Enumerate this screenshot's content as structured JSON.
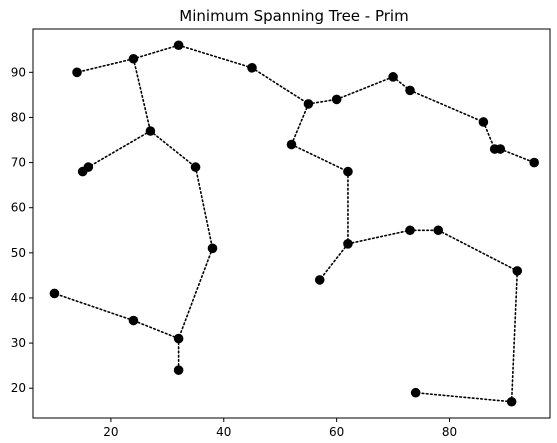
{
  "chart_data": {
    "type": "scatter",
    "title": "Minimum Spanning Tree - Prim",
    "xlabel": "",
    "ylabel": "",
    "xlim": [
      6.2,
      97.8
    ],
    "ylim": [
      13.4,
      99.6
    ],
    "x_ticks": [
      20,
      40,
      60,
      80
    ],
    "y_ticks": [
      20,
      30,
      40,
      50,
      60,
      70,
      80,
      90
    ],
    "grid": false,
    "legend": "none",
    "colors": {
      "point": "#000000",
      "edge": "#000000",
      "frame": "#000000",
      "background": "#ffffff"
    },
    "points": [
      {
        "x": 32,
        "y": 96
      },
      {
        "x": 24,
        "y": 93
      },
      {
        "x": 14,
        "y": 90
      },
      {
        "x": 45,
        "y": 91
      },
      {
        "x": 55,
        "y": 83
      },
      {
        "x": 60,
        "y": 84
      },
      {
        "x": 70,
        "y": 89
      },
      {
        "x": 73,
        "y": 86
      },
      {
        "x": 86,
        "y": 79
      },
      {
        "x": 88,
        "y": 73
      },
      {
        "x": 89,
        "y": 73
      },
      {
        "x": 95,
        "y": 70
      },
      {
        "x": 27,
        "y": 77
      },
      {
        "x": 16,
        "y": 69
      },
      {
        "x": 15,
        "y": 68
      },
      {
        "x": 35,
        "y": 69
      },
      {
        "x": 38,
        "y": 51
      },
      {
        "x": 32,
        "y": 31
      },
      {
        "x": 32,
        "y": 24
      },
      {
        "x": 24,
        "y": 35
      },
      {
        "x": 10,
        "y": 41
      },
      {
        "x": 52,
        "y": 74
      },
      {
        "x": 62,
        "y": 68
      },
      {
        "x": 62,
        "y": 52
      },
      {
        "x": 57,
        "y": 44
      },
      {
        "x": 73,
        "y": 55
      },
      {
        "x": 78,
        "y": 55
      },
      {
        "x": 92,
        "y": 46
      },
      {
        "x": 91,
        "y": 17
      },
      {
        "x": 74,
        "y": 19
      }
    ],
    "edges": [
      [
        0,
        1
      ],
      [
        1,
        2
      ],
      [
        0,
        3
      ],
      [
        3,
        4
      ],
      [
        4,
        5
      ],
      [
        5,
        6
      ],
      [
        6,
        7
      ],
      [
        7,
        8
      ],
      [
        8,
        9
      ],
      [
        9,
        10
      ],
      [
        10,
        11
      ],
      [
        1,
        12
      ],
      [
        12,
        13
      ],
      [
        13,
        14
      ],
      [
        12,
        15
      ],
      [
        15,
        16
      ],
      [
        16,
        17
      ],
      [
        17,
        18
      ],
      [
        17,
        19
      ],
      [
        19,
        20
      ],
      [
        4,
        21
      ],
      [
        21,
        22
      ],
      [
        22,
        23
      ],
      [
        23,
        24
      ],
      [
        23,
        25
      ],
      [
        25,
        26
      ],
      [
        26,
        27
      ],
      [
        27,
        28
      ],
      [
        28,
        29
      ]
    ]
  }
}
